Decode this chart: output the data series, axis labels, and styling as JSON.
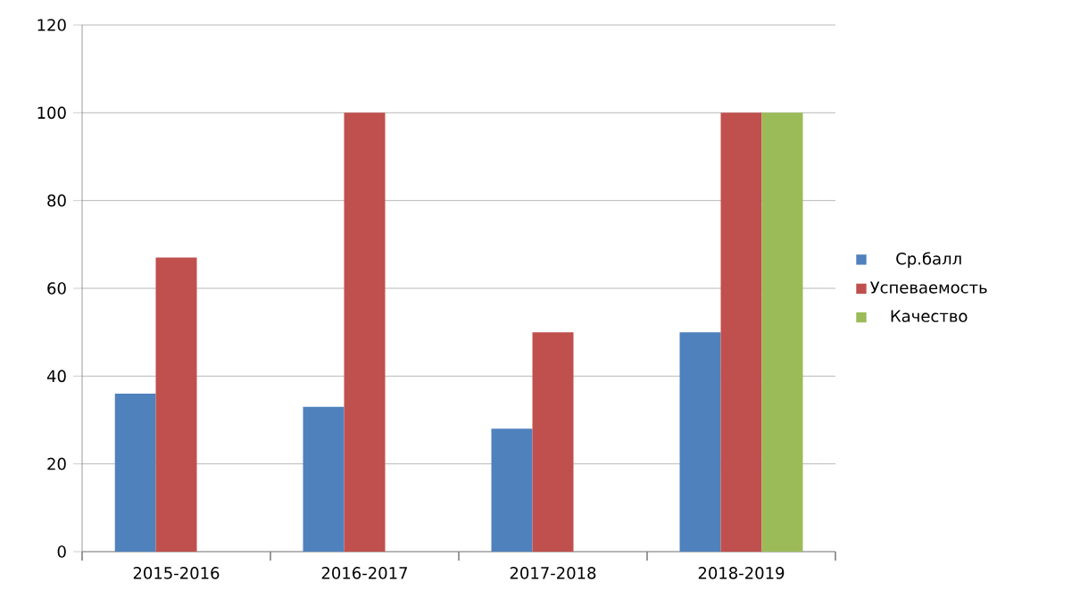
{
  "chart_data": {
    "type": "bar",
    "categories": [
      "2015-2016",
      "2016-2017",
      "2017-2018",
      "2018-2019"
    ],
    "series": [
      {
        "name": "Ср.балл",
        "color": "#4f81bd",
        "values": [
          36,
          33,
          28,
          50
        ]
      },
      {
        "name": "Успеваемость",
        "color": "#c0504d",
        "values": [
          67,
          100,
          50,
          100
        ]
      },
      {
        "name": "Качество",
        "color": "#9bbb59",
        "values": [
          null,
          null,
          null,
          100
        ]
      }
    ],
    "ylim": [
      0,
      120
    ],
    "yticks": [
      0,
      20,
      40,
      60,
      80,
      100,
      120
    ],
    "grid": "y",
    "legend": "right"
  }
}
